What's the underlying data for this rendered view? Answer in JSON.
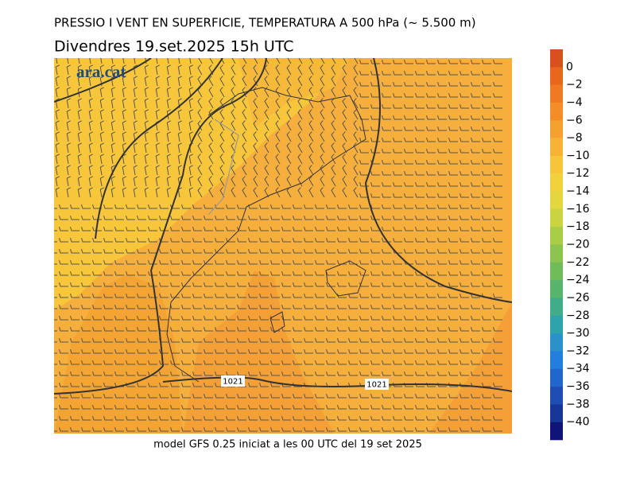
{
  "header": {
    "title": "PRESSIO I VENT EN SUPERFICIE, TEMPERATURA A 500 hPa (~ 5.500 m)",
    "subtitle": "Divendres  19.set.2025 15h UTC"
  },
  "logo": "ara.cat",
  "footer": "model GFS 0.25 iniciat a les 00 UTC del 19 set 2025",
  "isobar_labels": [
    "1021",
    "1021"
  ],
  "colorbar": {
    "labels": [
      "0",
      "−2",
      "−4",
      "−6",
      "−8",
      "−10",
      "−12",
      "−14",
      "−16",
      "−18",
      "−20",
      "−22",
      "−24",
      "−26",
      "−28",
      "−30",
      "−32",
      "−34",
      "−36",
      "−38",
      "−40"
    ],
    "colors": [
      "#d8501c",
      "#e8661e",
      "#f07a22",
      "#f48c28",
      "#f6a030",
      "#f8b236",
      "#f8c43a",
      "#f2d23c",
      "#e4d63e",
      "#cad440",
      "#aacc46",
      "#8cc44e",
      "#70bc58",
      "#56b46c",
      "#40ac8a",
      "#30a2aa",
      "#2a92c8",
      "#247ede",
      "#2066cc",
      "#1e4eb4",
      "#18369a",
      "#101478"
    ]
  }
}
